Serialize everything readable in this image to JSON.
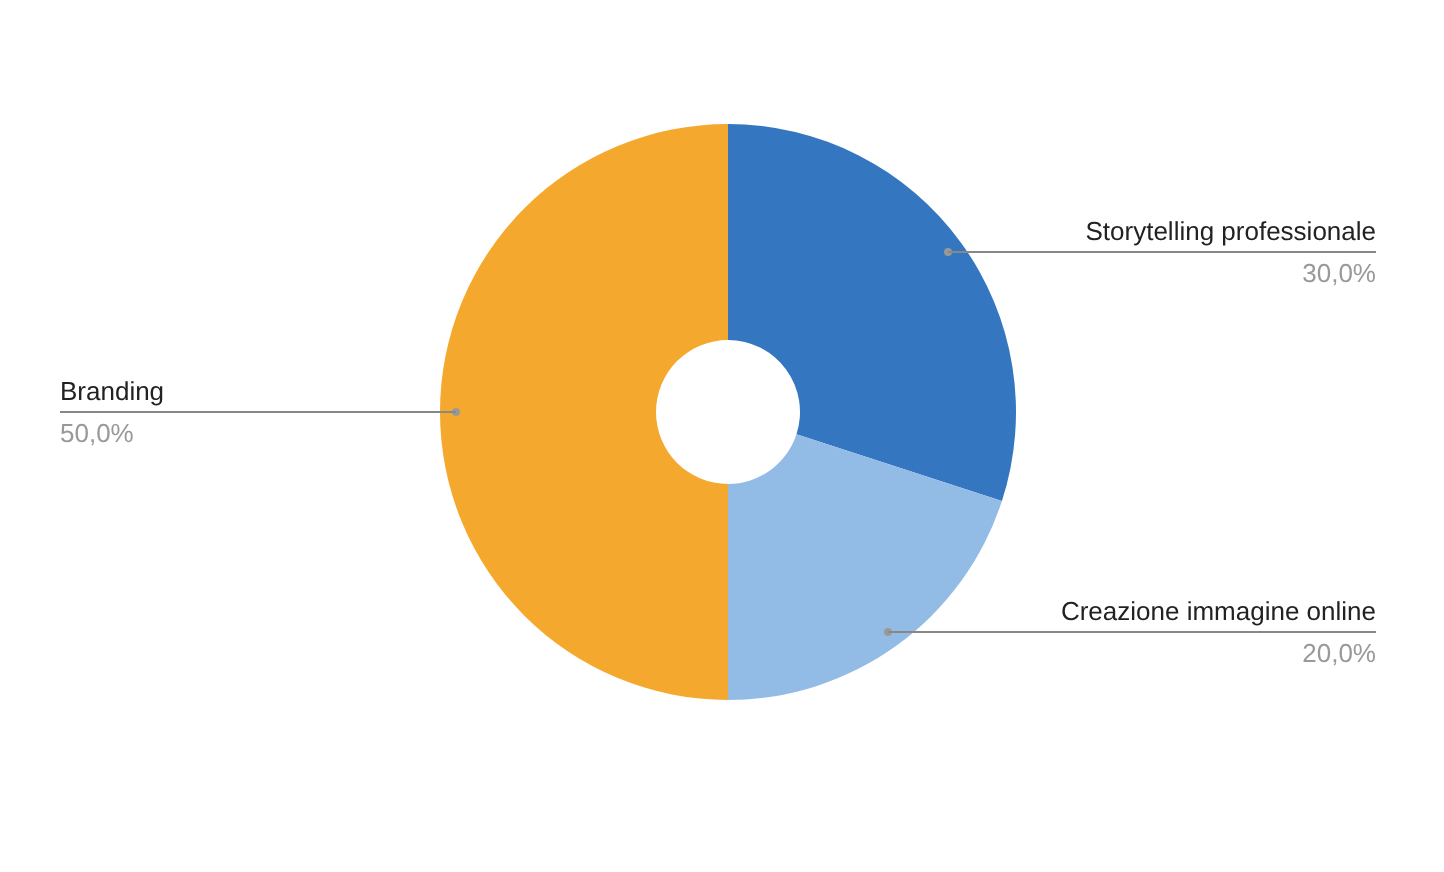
{
  "chart_data": {
    "type": "donut",
    "categories": [
      "Storytelling professionale",
      "Creazione immagine online",
      "Branding"
    ],
    "values": [
      30,
      20,
      50
    ],
    "colors": [
      "#3477c0",
      "#92bbe6",
      "#f4a92e"
    ],
    "value_labels": [
      "30,0%",
      "20,0%",
      "50,0%"
    ]
  }
}
